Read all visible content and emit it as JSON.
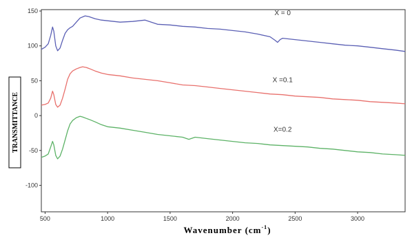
{
  "chart_data": {
    "type": "line",
    "xlabel": "Wavenumber (cm",
    "xlabel_superscript": "-1",
    "xlabel_suffix": ")",
    "ylabel": "TRANSMITTANCE",
    "xlim": [
      470,
      3380
    ],
    "ylim": [
      -138,
      152
    ],
    "x_ticks": [
      500,
      1000,
      1500,
      2000,
      2500,
      3000
    ],
    "y_ticks": [
      -100,
      -50,
      0,
      50,
      100,
      150
    ],
    "grid": false,
    "series": [
      {
        "name": "X = 0",
        "color": "#5a5fb4",
        "x": [
          470,
          500,
          525,
          545,
          560,
          570,
          585,
          600,
          620,
          640,
          660,
          680,
          700,
          720,
          750,
          780,
          820,
          850,
          900,
          950,
          1000,
          1100,
          1200,
          1300,
          1400,
          1500,
          1600,
          1700,
          1800,
          1900,
          2000,
          2100,
          2200,
          2300,
          2340,
          2360,
          2380,
          2400,
          2500,
          2600,
          2700,
          2800,
          2900,
          3000,
          3100,
          3200,
          3300,
          3380
        ],
        "y": [
          95,
          98,
          103,
          115,
          127,
          121,
          100,
          93,
          97,
          108,
          118,
          123,
          126,
          128,
          134,
          140,
          143,
          142,
          139,
          137,
          136,
          134,
          135,
          137,
          131,
          130,
          128,
          127,
          125,
          124,
          122,
          120,
          117,
          113,
          108,
          105,
          109,
          111,
          109,
          107,
          105,
          103,
          101,
          100,
          98,
          96,
          94,
          92
        ]
      },
      {
        "name": "X =0.1",
        "color": "#e8706c",
        "x": [
          470,
          500,
          525,
          545,
          560,
          570,
          585,
          600,
          620,
          640,
          660,
          680,
          700,
          720,
          750,
          780,
          800,
          830,
          860,
          900,
          950,
          1000,
          1100,
          1200,
          1300,
          1400,
          1500,
          1600,
          1700,
          1800,
          1900,
          2000,
          2100,
          2200,
          2300,
          2400,
          2500,
          2600,
          2700,
          2800,
          2900,
          3000,
          3100,
          3200,
          3300,
          3380
        ],
        "y": [
          15,
          16,
          18,
          25,
          35,
          30,
          16,
          12,
          15,
          25,
          38,
          52,
          60,
          64,
          67,
          69,
          70,
          69,
          67,
          64,
          61,
          59,
          57,
          54,
          52,
          50,
          47,
          44,
          43,
          41,
          39,
          37,
          35,
          33,
          31,
          30,
          28,
          27,
          26,
          24,
          23,
          22,
          20,
          19,
          18,
          17
        ]
      },
      {
        "name": "X=0.2",
        "color": "#5cb266",
        "x": [
          470,
          500,
          525,
          545,
          560,
          570,
          585,
          600,
          620,
          640,
          660,
          680,
          700,
          720,
          750,
          780,
          800,
          830,
          860,
          900,
          950,
          1000,
          1100,
          1200,
          1300,
          1400,
          1500,
          1600,
          1650,
          1700,
          1800,
          1900,
          2000,
          2100,
          2200,
          2300,
          2400,
          2500,
          2600,
          2700,
          2800,
          2900,
          3000,
          3100,
          3200,
          3300,
          3380
        ],
        "y": [
          -60,
          -58,
          -55,
          -45,
          -37,
          -42,
          -57,
          -62,
          -58,
          -48,
          -35,
          -22,
          -12,
          -7,
          -3,
          -1,
          -2,
          -4,
          -6,
          -9,
          -13,
          -16,
          -18,
          -21,
          -24,
          -27,
          -29,
          -31,
          -34,
          -31,
          -33,
          -35,
          -37,
          -39,
          -40,
          -42,
          -43,
          -44,
          -45,
          -47,
          -48,
          -50,
          -52,
          -53,
          -55,
          -56,
          -57
        ]
      }
    ]
  }
}
